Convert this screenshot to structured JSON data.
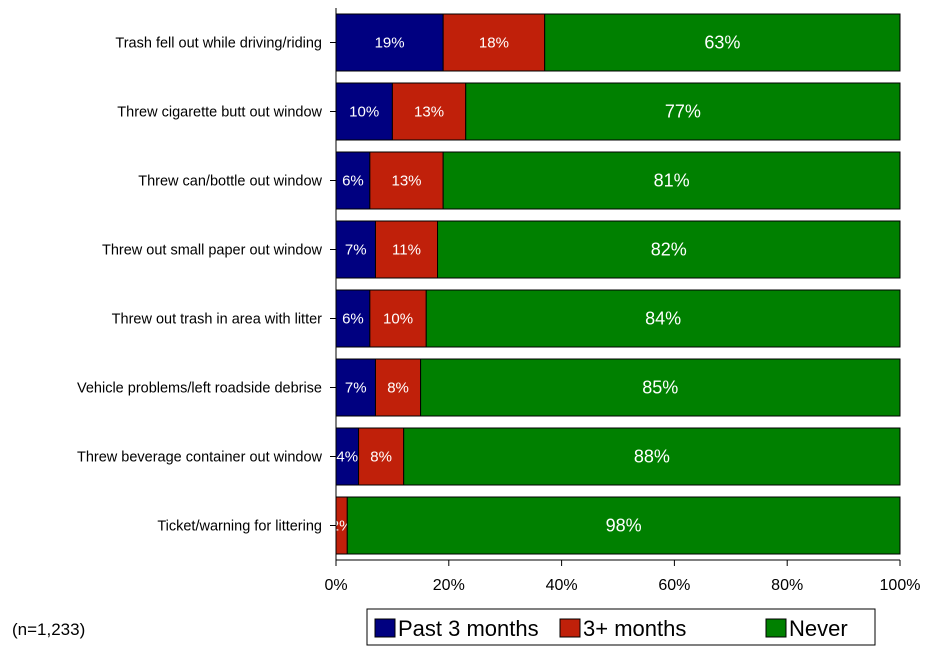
{
  "chart_data": {
    "type": "bar",
    "orientation": "horizontal",
    "stacked": true,
    "categories": [
      "Trash fell out while driving/riding",
      "Threw cigarette butt out window",
      "Threw can/bottle out window",
      "Threw out small paper out window",
      "Threw out trash in area with litter",
      "Vehicle problems/left roadside debrise",
      "Threw beverage container out window",
      "Ticket/warning for littering"
    ],
    "series": [
      {
        "name": "Past 3 months",
        "color": "#000080",
        "values": [
          19,
          10,
          6,
          7,
          6,
          7,
          4,
          0
        ],
        "labels": [
          "19%",
          "10%",
          "6%",
          "7%",
          "6%",
          "7%",
          "4%",
          ""
        ]
      },
      {
        "name": "3+ months",
        "color": "#c0200a",
        "values": [
          18,
          13,
          13,
          11,
          10,
          8,
          8,
          2
        ],
        "labels": [
          "18%",
          "13%",
          "13%",
          "11%",
          "10%",
          "8%",
          "8%",
          "2%"
        ]
      },
      {
        "name": "Never",
        "color": "#008000",
        "values": [
          63,
          77,
          81,
          82,
          84,
          85,
          88,
          98
        ],
        "labels": [
          "63%",
          "77%",
          "81%",
          "82%",
          "84%",
          "85%",
          "88%",
          "98%"
        ]
      }
    ],
    "xlim": [
      0,
      100
    ],
    "xticks": [
      0,
      20,
      40,
      60,
      80,
      100
    ],
    "xtick_labels": [
      "0%",
      "20%",
      "40%",
      "60%",
      "80%",
      "100%"
    ],
    "grid": false,
    "legend_position": "bottom"
  },
  "footnote": "(n=1,233)"
}
